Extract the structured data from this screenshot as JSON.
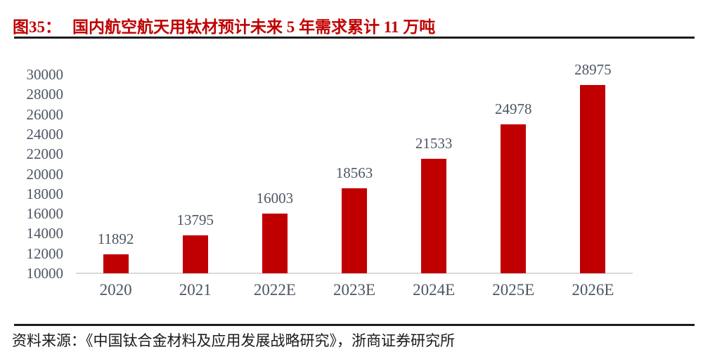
{
  "title": {
    "label": "图35：",
    "text": "国内航空航天用钛材预计未来 5 年需求累计 11 万吨"
  },
  "source": {
    "text": "资料来源：《中国钛合金材料及应用发展战略研究》，浙商证券研究所"
  },
  "colors": {
    "bar": "#C00000",
    "title_text": "#C00000",
    "axis_label": "#4D5663",
    "baseline": "#D9D9D9",
    "rule": "#1C1C1C"
  },
  "chart_data": {
    "type": "bar",
    "title": "国内航空航天用钛材预计未来 5 年需求累计 11 万吨",
    "categories": [
      "2020",
      "2021",
      "2022E",
      "2023E",
      "2024E",
      "2025E",
      "2026E"
    ],
    "values": [
      11892,
      13795,
      16003,
      18563,
      21533,
      24978,
      28975
    ],
    "xlabel": "",
    "ylabel": "",
    "ylim": [
      10000,
      30000
    ],
    "ytick_step": 2000,
    "yticks": [
      10000,
      12000,
      14000,
      16000,
      18000,
      20000,
      22000,
      24000,
      26000,
      28000,
      30000
    ],
    "grid": false,
    "legend": false,
    "data_labels": true,
    "bar_color": "#C00000"
  }
}
